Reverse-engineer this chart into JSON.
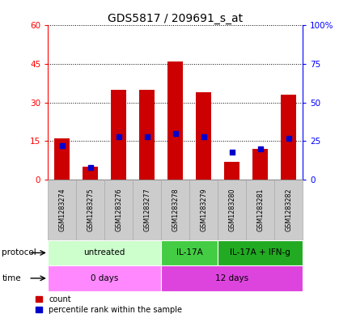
{
  "title": "GDS5817 / 209691_s_at",
  "samples": [
    "GSM1283274",
    "GSM1283275",
    "GSM1283276",
    "GSM1283277",
    "GSM1283278",
    "GSM1283279",
    "GSM1283280",
    "GSM1283281",
    "GSM1283282"
  ],
  "counts": [
    16,
    5,
    35,
    35,
    46,
    34,
    7,
    12,
    33
  ],
  "percentiles": [
    22,
    8,
    28,
    28,
    30,
    28,
    18,
    20,
    27
  ],
  "protocol_groups": [
    {
      "label": "untreated",
      "start": 0,
      "end": 4,
      "color": "#ccffcc"
    },
    {
      "label": "IL-17A",
      "start": 4,
      "end": 6,
      "color": "#44cc44"
    },
    {
      "label": "IL-17A + IFN-g",
      "start": 6,
      "end": 9,
      "color": "#22aa22"
    }
  ],
  "time_groups": [
    {
      "label": "0 days",
      "start": 0,
      "end": 4,
      "color": "#ff88ff"
    },
    {
      "label": "12 days",
      "start": 4,
      "end": 9,
      "color": "#dd44dd"
    }
  ],
  "left_ylim": [
    0,
    60
  ],
  "right_ylim": [
    0,
    100
  ],
  "left_yticks": [
    0,
    15,
    30,
    45,
    60
  ],
  "right_yticks": [
    0,
    25,
    50,
    75,
    100
  ],
  "left_tick_labels": [
    "0",
    "15",
    "30",
    "45",
    "60"
  ],
  "right_tick_labels": [
    "0",
    "25",
    "50",
    "75",
    "100%"
  ],
  "bar_color": "#cc0000",
  "dot_color": "#0000cc",
  "bar_width": 0.55,
  "legend_items": [
    {
      "label": "count",
      "color": "#cc0000"
    },
    {
      "label": "percentile rank within the sample",
      "color": "#0000cc"
    }
  ],
  "sample_bg_color": "#cccccc",
  "sample_bg_edge_color": "#aaaaaa",
  "fig_width": 4.4,
  "fig_height": 3.93,
  "fig_dpi": 100
}
